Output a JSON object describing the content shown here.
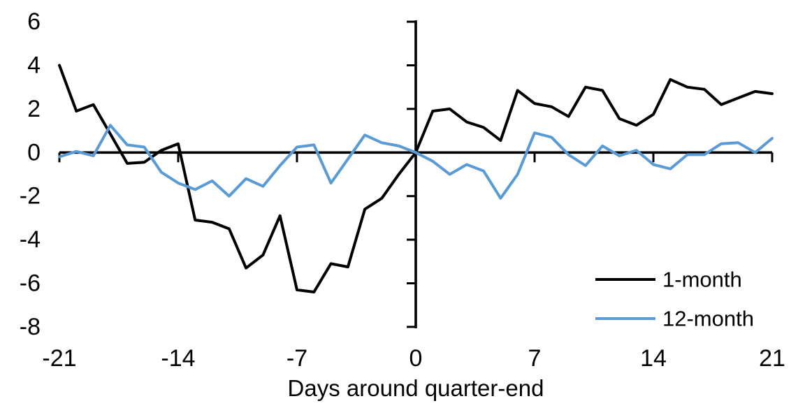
{
  "chart_data": {
    "type": "line",
    "title": "",
    "xlabel": "Days around quarter-end",
    "ylabel": "",
    "xlim": [
      -21,
      21
    ],
    "ylim": [
      -8,
      6
    ],
    "grid": false,
    "legend_position": "inside-lower-right",
    "axis_color": "#000000",
    "x_ticks": [
      -21,
      -14,
      -7,
      0,
      7,
      14,
      21
    ],
    "y_ticks": [
      6,
      4,
      2,
      0,
      -2,
      -4,
      -6,
      -8
    ],
    "x": [
      -21,
      -20,
      -19,
      -18,
      -17,
      -16,
      -15,
      -14,
      -13,
      -12,
      -11,
      -10,
      -9,
      -8,
      -7,
      -6,
      -5,
      -4,
      -3,
      -2,
      -1,
      0,
      1,
      2,
      3,
      4,
      5,
      6,
      7,
      8,
      9,
      10,
      11,
      12,
      13,
      14,
      15,
      16,
      17,
      18,
      19,
      20,
      21
    ],
    "series": [
      {
        "name": "1-month",
        "color": "#000000",
        "values": [
          4.0,
          1.9,
          2.2,
          0.85,
          -0.5,
          -0.45,
          0.1,
          0.4,
          -3.1,
          -3.2,
          -3.5,
          -5.3,
          -4.7,
          -2.9,
          -6.3,
          -6.4,
          -5.1,
          -5.25,
          -2.6,
          -2.1,
          -1.0,
          0.0,
          1.9,
          2.0,
          1.4,
          1.15,
          0.55,
          2.85,
          2.25,
          2.1,
          1.65,
          3.0,
          2.85,
          1.55,
          1.25,
          1.75,
          3.35,
          3.0,
          2.9,
          2.2,
          2.5,
          2.8,
          2.7
        ]
      },
      {
        "name": "12-month",
        "color": "#5B9BD5",
        "values": [
          -0.2,
          0.05,
          -0.15,
          1.25,
          0.35,
          0.25,
          -0.9,
          -1.4,
          -1.7,
          -1.3,
          -2.0,
          -1.2,
          -1.55,
          -0.6,
          0.25,
          0.35,
          -1.4,
          -0.3,
          0.8,
          0.45,
          0.3,
          0.0,
          -0.4,
          -1.0,
          -0.55,
          -0.85,
          -2.1,
          -1.0,
          0.9,
          0.7,
          -0.1,
          -0.6,
          0.3,
          -0.15,
          0.1,
          -0.55,
          -0.75,
          -0.1,
          -0.1,
          0.4,
          0.45,
          0.0,
          0.65
        ]
      }
    ]
  },
  "legend": {
    "items": [
      {
        "label": "1-month"
      },
      {
        "label": "12-month"
      }
    ]
  }
}
